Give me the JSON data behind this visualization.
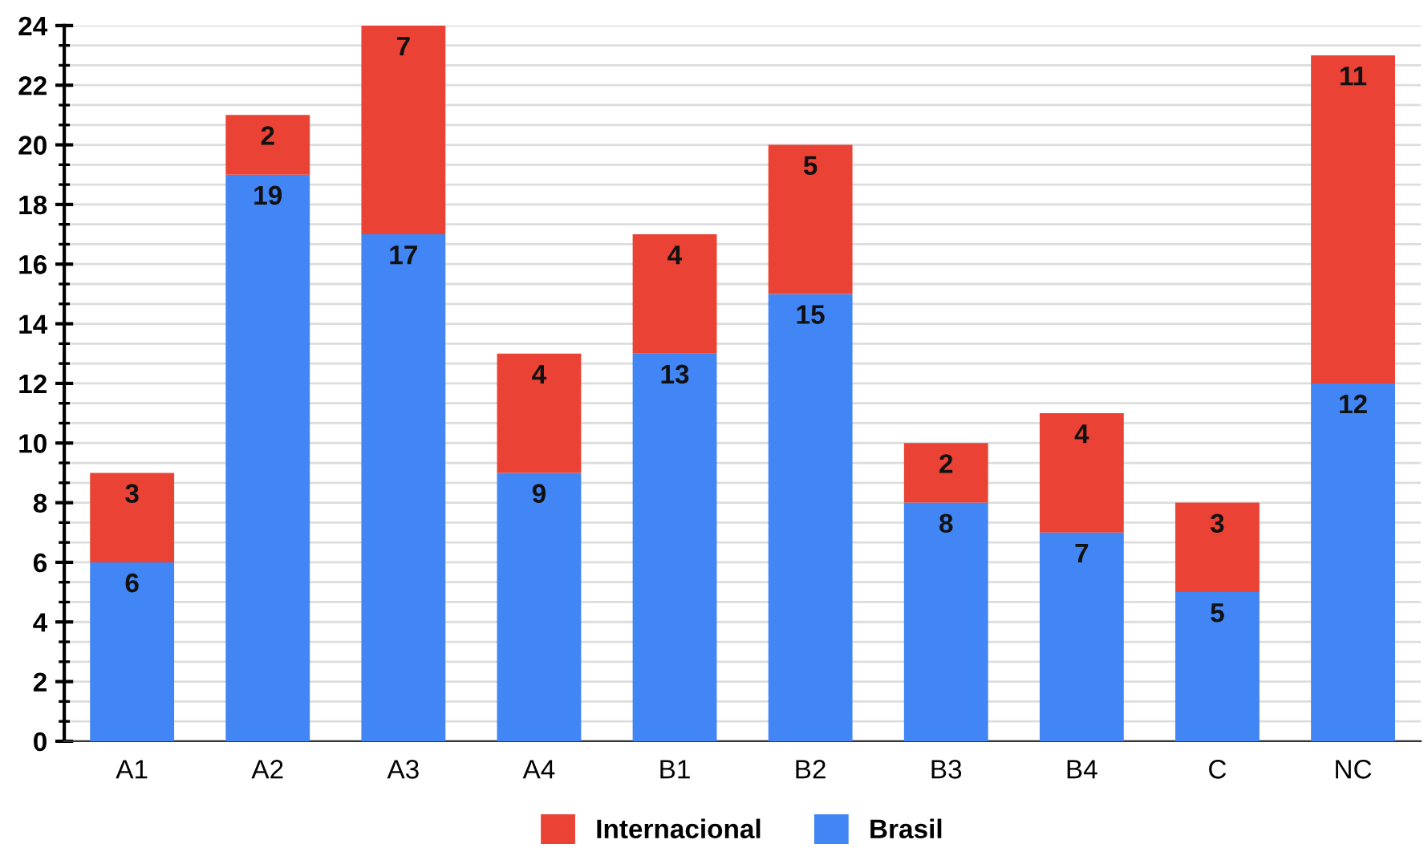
{
  "chart_data": {
    "type": "bar",
    "stacked": true,
    "categories": [
      "A1",
      "A2",
      "A3",
      "A4",
      "B1",
      "B2",
      "B3",
      "B4",
      "C",
      "NC"
    ],
    "series": [
      {
        "name": "Brasil",
        "color": "#4285f4",
        "values": [
          6,
          19,
          17,
          9,
          13,
          15,
          8,
          7,
          5,
          12
        ]
      },
      {
        "name": "Internacional",
        "color": "#ea4335",
        "values": [
          3,
          2,
          7,
          4,
          4,
          5,
          2,
          4,
          3,
          11
        ]
      }
    ],
    "ylim": [
      0,
      24
    ],
    "yticks": [
      0,
      2,
      4,
      6,
      8,
      10,
      12,
      14,
      16,
      18,
      20,
      22,
      24
    ],
    "grid": "y",
    "legend": "bottom",
    "data_labels": true
  }
}
